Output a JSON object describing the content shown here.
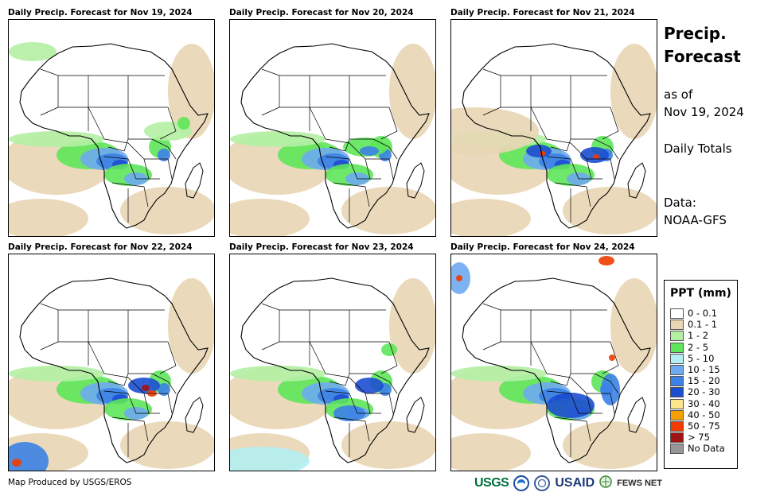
{
  "panels": [
    {
      "title": "Daily Precip. Forecast for Nov 19, 2024"
    },
    {
      "title": "Daily Precip. Forecast for Nov 20, 2024"
    },
    {
      "title": "Daily Precip. Forecast for Nov 21, 2024"
    },
    {
      "title": "Daily Precip. Forecast for Nov 22, 2024"
    },
    {
      "title": "Daily Precip. Forecast for Nov 23, 2024"
    },
    {
      "title": "Daily Precip. Forecast for Nov 24, 2024"
    }
  ],
  "side": {
    "title_line1": "Precip.",
    "title_line2": "Forecast",
    "asof_line1": "as of",
    "asof_line2": "Nov 19, 2024",
    "totals": "Daily Totals",
    "data_line1": "Data:",
    "data_line2": "NOAA-GFS"
  },
  "legend": {
    "title": "PPT (mm)",
    "items": [
      {
        "label": "0 - 0.1",
        "color": "#ffffff"
      },
      {
        "label": "0.1 - 1",
        "color": "#e8d6b4"
      },
      {
        "label": "1 - 2",
        "color": "#b4f0a4"
      },
      {
        "label": "2 - 5",
        "color": "#5ee65a"
      },
      {
        "label": "5 - 10",
        "color": "#b4eef2"
      },
      {
        "label": "10 - 15",
        "color": "#6eaaf0"
      },
      {
        "label": "15 - 20",
        "color": "#3c82e6"
      },
      {
        "label": "20 - 30",
        "color": "#1c4ed0"
      },
      {
        "label": "30 - 40",
        "color": "#fae68c"
      },
      {
        "label": "40 - 50",
        "color": "#f5a000"
      },
      {
        "label": "50 - 75",
        "color": "#f03c00"
      },
      {
        "label": "> 75",
        "color": "#a01414"
      },
      {
        "label": "No Data",
        "color": "#969696"
      }
    ]
  },
  "footer": "Map Produced by USGS/EROS",
  "logos": {
    "usgs": "USGS",
    "usaid": "USAID",
    "fews": "FEWS NET"
  }
}
